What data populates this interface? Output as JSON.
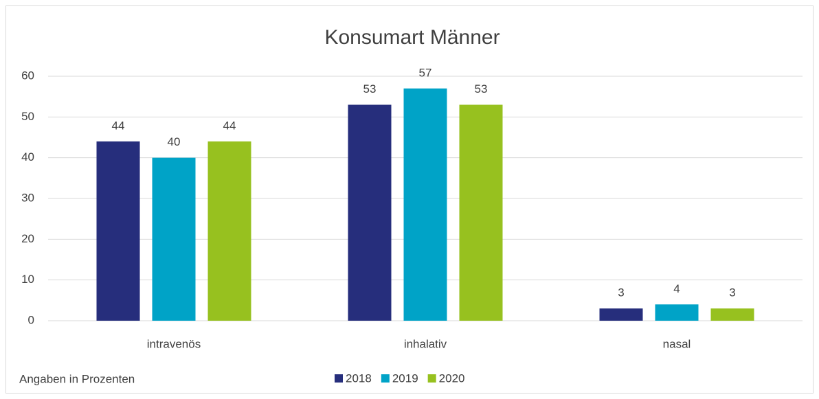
{
  "chart_data": {
    "type": "bar",
    "title": "Konsumart Männer",
    "categories": [
      "intravenös",
      "inhalativ",
      "nasal"
    ],
    "series": [
      {
        "name": "2018",
        "color": "#262e7c",
        "values": [
          44,
          53,
          3
        ]
      },
      {
        "name": "2019",
        "color": "#00a3c7",
        "values": [
          40,
          57,
          4
        ]
      },
      {
        "name": "2020",
        "color": "#97c11f",
        "values": [
          44,
          53,
          3
        ]
      }
    ],
    "ylim": [
      0,
      60
    ],
    "yticks": [
      0,
      10,
      20,
      30,
      40,
      50,
      60
    ],
    "grid": true,
    "legend": "bottom",
    "note": "Angaben in Prozenten"
  }
}
